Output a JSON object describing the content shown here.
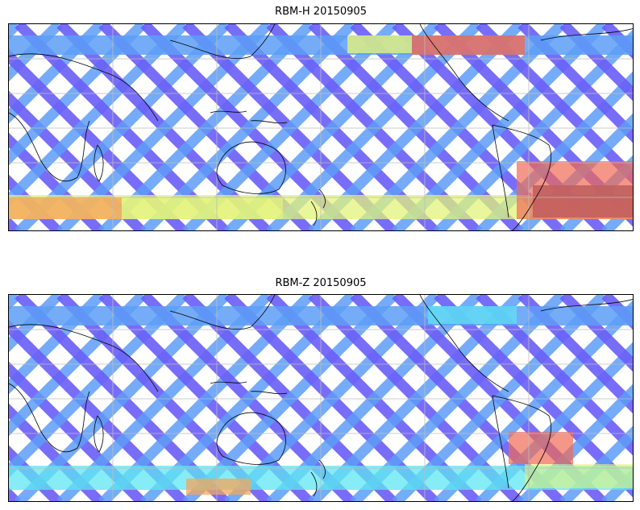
{
  "maps": [
    {
      "title": "RBM-H 20150905",
      "colors": {
        "low": "#6a5ef8",
        "low_mid": "#5d9df7",
        "mid": "#5ee6f2",
        "mid_high": "#e3f37a",
        "high": "#f5a65a",
        "very_high": "#f06a55",
        "max": "#c25f5f"
      }
    },
    {
      "title": "RBM-Z 20150905",
      "colors": {
        "low": "#6a5ef8",
        "low_mid": "#5d9df7",
        "mid": "#5ee6f2",
        "mid_high": "#e3f37a",
        "high": "#f5a65a",
        "very_high": "#f06a55"
      }
    }
  ],
  "gridline_color": "#bdbdbd",
  "coastline_color": "#000000"
}
